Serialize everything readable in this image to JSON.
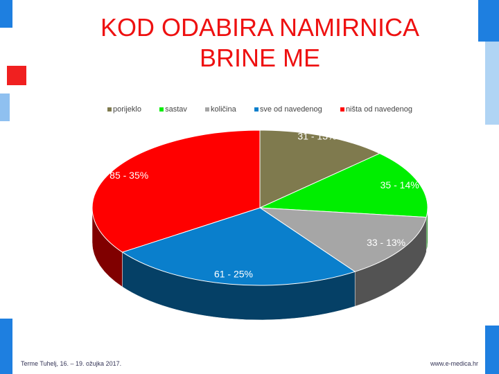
{
  "chart_data": {
    "type": "pie3d",
    "title": "KOD ODABIRA NAMIRNICA BRINE ME",
    "categories": [
      "porijeklo",
      "sastav",
      "količina",
      "sve od navedenog",
      "ništa od navedenog"
    ],
    "values": [
      31,
      35,
      33,
      61,
      85
    ],
    "value_labels": [
      "31 - 13%",
      "35 - 14%",
      "33 - 13%",
      "61 - 25%",
      "85 - 35%"
    ],
    "colors": [
      "#7f7a4e",
      "#00ee00",
      "#a6a6a6",
      "#0a7fcc",
      "#ff0000"
    ],
    "legend": "top"
  },
  "footer": {
    "left": "Terme Tuhelj, 16. – 19. ožujka 2017.",
    "right": "www.e-medica.hr"
  }
}
